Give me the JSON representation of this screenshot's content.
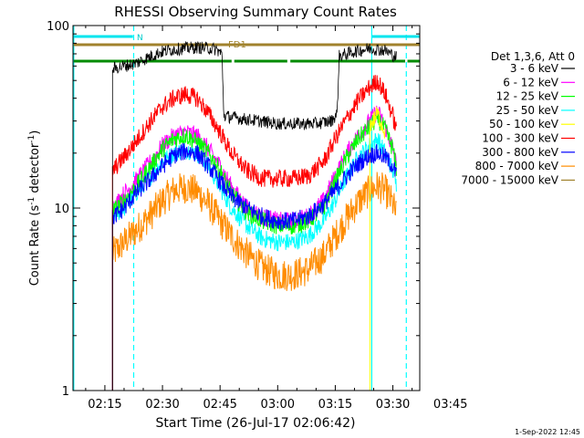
{
  "chart_data": {
    "type": "line",
    "title": "RHESSI Observing Summary Count Rates",
    "xlabel": "Start Time (26-Jul-17 02:06:42)",
    "ylabel_main": "Count Rate (s",
    "ylabel_sup1": "-1",
    "ylabel_mid": " detector",
    "ylabel_sup2": "-1",
    "ylabel_end": ")",
    "yscale": "log",
    "ylim": [
      1,
      100
    ],
    "xlim_minutes": [
      6.7,
      97.0
    ],
    "x_ticks": [
      {
        "minute": 15,
        "label": "02:15"
      },
      {
        "minute": 30,
        "label": "02:30"
      },
      {
        "minute": 45,
        "label": "02:45"
      },
      {
        "minute": 60,
        "label": "03:00"
      },
      {
        "minute": 75,
        "label": "03:15"
      },
      {
        "minute": 90,
        "label": "03:30"
      },
      {
        "minute": 105,
        "label": "03:45"
      }
    ],
    "y_ticks": [
      {
        "value": 1,
        "label": "1"
      },
      {
        "value": 10,
        "label": "10"
      },
      {
        "value": 100,
        "label": "100"
      }
    ],
    "legend_position": "top-right",
    "legend_header": "Det 1,3,6, Att 0",
    "series": [
      {
        "name": "3 - 6 keV",
        "color": "#000000",
        "points": [
          [
            17,
            58
          ],
          [
            20,
            60
          ],
          [
            23,
            62
          ],
          [
            27,
            68
          ],
          [
            30,
            72
          ],
          [
            33,
            74
          ],
          [
            36,
            75
          ],
          [
            39,
            76
          ],
          [
            42,
            75
          ],
          [
            44,
            74
          ],
          [
            45.5,
            70
          ],
          [
            46,
            32
          ],
          [
            50,
            31
          ],
          [
            55,
            30
          ],
          [
            60,
            29
          ],
          [
            65,
            29
          ],
          [
            70,
            29
          ],
          [
            74,
            30
          ],
          [
            75.5,
            33
          ],
          [
            76,
            68
          ],
          [
            80,
            72
          ],
          [
            84,
            75
          ],
          [
            88,
            73
          ],
          [
            91,
            67
          ]
        ]
      },
      {
        "name": "6 - 12 keV",
        "color": "#ff00ff",
        "points": [
          [
            17,
            10
          ],
          [
            20,
            12
          ],
          [
            23,
            14
          ],
          [
            27,
            18
          ],
          [
            30,
            22
          ],
          [
            33,
            25
          ],
          [
            36,
            26
          ],
          [
            39,
            25
          ],
          [
            42,
            21
          ],
          [
            45,
            17
          ],
          [
            48,
            13
          ],
          [
            52,
            10
          ],
          [
            56,
            9
          ],
          [
            60,
            8.5
          ],
          [
            64,
            8.5
          ],
          [
            68,
            9
          ],
          [
            72,
            11
          ],
          [
            75,
            15
          ],
          [
            78,
            20
          ],
          [
            81,
            25
          ],
          [
            84,
            30
          ],
          [
            86,
            34
          ],
          [
            88,
            28
          ],
          [
            90,
            21
          ],
          [
            91,
            17
          ]
        ]
      },
      {
        "name": "12 - 25 keV",
        "color": "#00ff00",
        "points": [
          [
            17,
            9.5
          ],
          [
            20,
            11
          ],
          [
            23,
            13
          ],
          [
            27,
            17
          ],
          [
            30,
            21
          ],
          [
            33,
            24
          ],
          [
            36,
            25
          ],
          [
            39,
            23
          ],
          [
            42,
            20
          ],
          [
            45,
            16
          ],
          [
            48,
            12
          ],
          [
            52,
            9.5
          ],
          [
            56,
            8.5
          ],
          [
            60,
            8
          ],
          [
            64,
            8
          ],
          [
            68,
            8.5
          ],
          [
            72,
            10
          ],
          [
            75,
            14
          ],
          [
            78,
            19
          ],
          [
            81,
            24
          ],
          [
            84,
            28
          ],
          [
            86,
            31
          ],
          [
            88,
            27
          ],
          [
            90,
            21
          ],
          [
            91,
            16
          ]
        ]
      },
      {
        "name": "25 - 50 keV",
        "color": "#00ffff",
        "points": [
          [
            17,
            9
          ],
          [
            20,
            10
          ],
          [
            23,
            12
          ],
          [
            27,
            15
          ],
          [
            30,
            18
          ],
          [
            33,
            20
          ],
          [
            36,
            21
          ],
          [
            39,
            20
          ],
          [
            42,
            17
          ],
          [
            45,
            13
          ],
          [
            48,
            10
          ],
          [
            52,
            8
          ],
          [
            56,
            6.8
          ],
          [
            60,
            6.5
          ],
          [
            64,
            6.5
          ],
          [
            68,
            7
          ],
          [
            72,
            8.5
          ],
          [
            75,
            11
          ],
          [
            78,
            15
          ],
          [
            81,
            19
          ],
          [
            84,
            22
          ],
          [
            86,
            24
          ],
          [
            88,
            20
          ],
          [
            90,
            16
          ],
          [
            91,
            13
          ]
        ]
      },
      {
        "name": "50 - 100 keV",
        "color": "#ffff00",
        "points": [
          [
            84,
            28
          ],
          [
            86,
            33
          ],
          [
            88,
            26
          ]
        ]
      },
      {
        "name": "100 - 300 keV",
        "color": "#ff0000",
        "points": [
          [
            17,
            16
          ],
          [
            20,
            19
          ],
          [
            23,
            23
          ],
          [
            27,
            30
          ],
          [
            30,
            36
          ],
          [
            33,
            40
          ],
          [
            36,
            42
          ],
          [
            39,
            40
          ],
          [
            42,
            33
          ],
          [
            45,
            26
          ],
          [
            48,
            20
          ],
          [
            52,
            16
          ],
          [
            56,
            14.5
          ],
          [
            60,
            14.5
          ],
          [
            64,
            14.5
          ],
          [
            68,
            15
          ],
          [
            72,
            18
          ],
          [
            75,
            24
          ],
          [
            78,
            31
          ],
          [
            81,
            39
          ],
          [
            84,
            46
          ],
          [
            86,
            50
          ],
          [
            88,
            42
          ],
          [
            90,
            32
          ],
          [
            91,
            26
          ]
        ]
      },
      {
        "name": "300 - 800 keV",
        "color": "#0000ff",
        "points": [
          [
            17,
            8.8
          ],
          [
            20,
            10
          ],
          [
            23,
            12
          ],
          [
            27,
            14.5
          ],
          [
            30,
            17
          ],
          [
            33,
            19.5
          ],
          [
            36,
            20.5
          ],
          [
            39,
            20
          ],
          [
            42,
            17
          ],
          [
            45,
            14
          ],
          [
            48,
            11.5
          ],
          [
            52,
            10
          ],
          [
            56,
            9
          ],
          [
            60,
            8.5
          ],
          [
            64,
            8.5
          ],
          [
            68,
            9
          ],
          [
            72,
            10.5
          ],
          [
            75,
            12.5
          ],
          [
            78,
            15
          ],
          [
            81,
            17.5
          ],
          [
            84,
            19.5
          ],
          [
            86,
            20
          ],
          [
            88,
            19
          ],
          [
            90,
            17
          ],
          [
            91,
            15
          ]
        ]
      },
      {
        "name": "800 - 7000 keV",
        "color": "#ff8c00",
        "points": [
          [
            17,
            5.6
          ],
          [
            20,
            6.5
          ],
          [
            23,
            7.5
          ],
          [
            27,
            9.2
          ],
          [
            30,
            11
          ],
          [
            33,
            12.5
          ],
          [
            36,
            13
          ],
          [
            39,
            12.3
          ],
          [
            42,
            10.5
          ],
          [
            45,
            8.5
          ],
          [
            48,
            7
          ],
          [
            52,
            5.6
          ],
          [
            56,
            4.7
          ],
          [
            60,
            4.3
          ],
          [
            64,
            4.3
          ],
          [
            68,
            4.6
          ],
          [
            72,
            5.5
          ],
          [
            75,
            7
          ],
          [
            78,
            8.8
          ],
          [
            81,
            10.8
          ],
          [
            84,
            12.5
          ],
          [
            86,
            13.2
          ],
          [
            88,
            12.5
          ],
          [
            90,
            10.5
          ],
          [
            91,
            9
          ]
        ]
      },
      {
        "name": "7000 - 15000 keV",
        "color": "#a0822d",
        "points": []
      }
    ],
    "annotations": {
      "saa_label": "N",
      "flag_label": "FD1",
      "cyan_lines_minutes": [
        6.9,
        22.5,
        84.5,
        93.5
      ],
      "cyan_bars": [
        [
          6.9,
          22.3
        ],
        [
          84.6,
          97.0
        ]
      ],
      "olive_bar": [
        6.9,
        97.0
      ],
      "green_bars": [
        [
          6.9,
          48.0
        ],
        [
          48.7,
          62.5
        ],
        [
          63.3,
          93.2
        ],
        [
          93.8,
          97.0
        ]
      ]
    },
    "timestamp": "1-Sep-2022 12:45"
  }
}
